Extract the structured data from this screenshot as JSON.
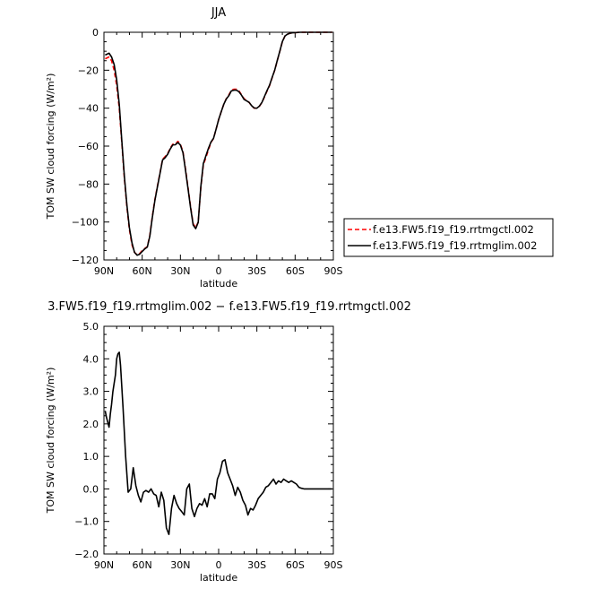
{
  "chart_data": [
    {
      "type": "line",
      "title": "JJA",
      "xlabel": "latitude",
      "ylabel": "TOM SW cloud forcing (W/m²)",
      "xlim": [
        90,
        -90
      ],
      "ylim": [
        -120,
        0
      ],
      "x_ticks": [
        90,
        60,
        30,
        0,
        -30,
        -60,
        -90
      ],
      "x_tick_labels": [
        "90N",
        "60N",
        "30N",
        "0",
        "30S",
        "60S",
        "90S"
      ],
      "y_ticks": [
        0,
        -20,
        -40,
        -60,
        -80,
        -100,
        -120
      ],
      "y_tick_labels": [
        "0",
        "−20",
        "−40",
        "−60",
        "−80",
        "−100",
        "−120"
      ],
      "legend": {
        "placement": "right of plot"
      },
      "series": [
        {
          "name": "f.e13.FW5.f19_f19.rrtmgctl.002",
          "color": "#ff0000",
          "dash": "dashed",
          "x": [
            89,
            86,
            84,
            82,
            80,
            78,
            76,
            74,
            72,
            70,
            68,
            66,
            64,
            62,
            60,
            58,
            56,
            54,
            52,
            50,
            48,
            46,
            44,
            42,
            40,
            38,
            36,
            34,
            32,
            30,
            28,
            26,
            24,
            22,
            20,
            18,
            16,
            14,
            12,
            10,
            8,
            6,
            4,
            2,
            0,
            -2,
            -4,
            -6,
            -8,
            -10,
            -12,
            -14,
            -16,
            -18,
            -20,
            -22,
            -24,
            -26,
            -28,
            -30,
            -32,
            -34,
            -36,
            -38,
            -40,
            -42,
            -44,
            -46,
            -48,
            -50,
            -52,
            -54,
            -56,
            -58,
            -60,
            -62,
            -64,
            -66,
            -68,
            -70,
            -75,
            -80,
            -85,
            -89
          ],
          "y": [
            -14,
            -13,
            -15,
            -20,
            -28,
            -40,
            -58,
            -77,
            -92,
            -104,
            -112,
            -116,
            -117.3,
            -116.7,
            -115,
            -114,
            -113,
            -107,
            -97,
            -88,
            -81,
            -74,
            -67,
            -65.5,
            -64,
            -61,
            -59,
            -59,
            -57.5,
            -59,
            -63,
            -72,
            -82,
            -92,
            -101,
            -103,
            -100,
            -82,
            -70,
            -66,
            -62,
            -58,
            -56,
            -51,
            -46,
            -42,
            -38,
            -35,
            -33,
            -30.5,
            -30,
            -30,
            -31,
            -33,
            -35,
            -36,
            -37,
            -39,
            -40,
            -40,
            -39,
            -37,
            -34,
            -31,
            -28,
            -24,
            -20,
            -15,
            -10,
            -5,
            -2,
            -1,
            -0.5,
            -0.3,
            -0.2,
            -0.1,
            0,
            0,
            0,
            0,
            0,
            0,
            0,
            0
          ]
        },
        {
          "name": "f.e13.FW5.f19_f19.rrtmglim.002",
          "color": "#000000",
          "dash": "solid",
          "x": [
            89,
            86,
            84,
            82,
            80,
            78,
            76,
            74,
            72,
            70,
            68,
            66,
            64,
            62,
            60,
            58,
            56,
            54,
            52,
            50,
            48,
            46,
            44,
            42,
            40,
            38,
            36,
            34,
            32,
            30,
            28,
            26,
            24,
            22,
            20,
            18,
            16,
            14,
            12,
            10,
            8,
            6,
            4,
            2,
            0,
            -2,
            -4,
            -6,
            -8,
            -10,
            -12,
            -14,
            -16,
            -18,
            -20,
            -22,
            -24,
            -26,
            -28,
            -30,
            -32,
            -34,
            -36,
            -38,
            -40,
            -42,
            -44,
            -46,
            -48,
            -50,
            -52,
            -54,
            -56,
            -58,
            -60,
            -62,
            -64,
            -66,
            -68,
            -70,
            -75,
            -80,
            -85,
            -89
          ],
          "y": [
            -12,
            -11,
            -13,
            -17,
            -25,
            -38,
            -57,
            -76,
            -91,
            -103,
            -111,
            -116,
            -117.5,
            -117,
            -115.5,
            -114.2,
            -113.2,
            -107.5,
            -97.6,
            -88.5,
            -81.4,
            -74.3,
            -67.3,
            -66.1,
            -64.3,
            -61.5,
            -59.4,
            -59.3,
            -58.1,
            -59.4,
            -63.5,
            -72.6,
            -82.7,
            -92.6,
            -101.6,
            -103.5,
            -100.2,
            -81.4,
            -69.2,
            -65.1,
            -61.2,
            -57.8,
            -55.9,
            -51,
            -46,
            -42,
            -38,
            -35.2,
            -33.4,
            -30.9,
            -30.5,
            -30.5,
            -31.4,
            -33.2,
            -35.4,
            -36.2,
            -37,
            -38.8,
            -39.9,
            -40,
            -38.9,
            -36.9,
            -33.8,
            -30.7,
            -27.8,
            -23.8,
            -19.9,
            -14.9,
            -9.9,
            -4.9,
            -2,
            -1,
            -0.5,
            -0.3,
            -0.2,
            -0.1,
            0,
            0,
            0,
            0,
            0,
            0,
            0,
            0
          ]
        }
      ]
    },
    {
      "type": "line",
      "title": "3.FW5.f19_f19.rrtmglim.002 − f.e13.FW5.f19_f19.rrtmgctl.002",
      "xlabel": "latitude",
      "ylabel": "TOM SW cloud forcing (W/m²)",
      "xlim": [
        90,
        -90
      ],
      "ylim": [
        -2.0,
        5.0
      ],
      "x_ticks": [
        90,
        60,
        30,
        0,
        -30,
        -60,
        -90
      ],
      "x_tick_labels": [
        "90N",
        "60N",
        "30N",
        "0",
        "30S",
        "60S",
        "90S"
      ],
      "y_ticks": [
        5.0,
        4.0,
        3.0,
        2.0,
        1.0,
        0.0,
        -1.0,
        -2.0
      ],
      "y_tick_labels": [
        "5.0",
        "4.0",
        "3.0",
        "2.0",
        "1.0",
        "0.0",
        "−1.0",
        "−2.0"
      ],
      "series": [
        {
          "color": "#000000",
          "dash": "solid",
          "x": [
            89,
            88,
            86,
            85,
            84,
            83,
            81,
            80,
            79,
            78,
            77,
            75,
            73,
            71,
            69,
            67,
            65,
            63,
            61,
            59,
            57,
            55,
            53,
            51,
            49,
            47,
            45,
            43,
            41,
            39,
            37,
            35,
            33,
            31,
            29,
            27,
            25,
            23,
            21,
            19,
            17,
            15,
            13,
            11,
            9,
            7,
            5,
            3,
            1,
            -1,
            -3,
            -5,
            -7,
            -9,
            -11,
            -13,
            -15,
            -17,
            -19,
            -21,
            -23,
            -25,
            -27,
            -29,
            -31,
            -33,
            -35,
            -37,
            -39,
            -41,
            -43,
            -45,
            -47,
            -49,
            -51,
            -53,
            -55,
            -57,
            -59,
            -61,
            -63,
            -65,
            -67,
            -70,
            -75,
            -80,
            -85,
            -89
          ],
          "y": [
            2.4,
            2.2,
            1.9,
            2.3,
            2.6,
            3.0,
            3.5,
            4.0,
            4.15,
            4.2,
            3.8,
            2.5,
            1.0,
            -0.1,
            0.0,
            0.65,
            0.1,
            -0.2,
            -0.4,
            -0.1,
            -0.05,
            -0.1,
            0.0,
            -0.15,
            -0.2,
            -0.55,
            -0.1,
            -0.35,
            -1.2,
            -1.4,
            -0.6,
            -0.2,
            -0.45,
            -0.6,
            -0.7,
            -0.8,
            0.0,
            0.15,
            -0.6,
            -0.85,
            -0.6,
            -0.45,
            -0.5,
            -0.3,
            -0.55,
            -0.15,
            -0.15,
            -0.3,
            0.3,
            0.5,
            0.85,
            0.9,
            0.5,
            0.3,
            0.1,
            -0.2,
            0.05,
            -0.1,
            -0.35,
            -0.5,
            -0.8,
            -0.6,
            -0.65,
            -0.5,
            -0.3,
            -0.2,
            -0.1,
            0.05,
            0.1,
            0.2,
            0.3,
            0.15,
            0.25,
            0.2,
            0.3,
            0.25,
            0.2,
            0.25,
            0.2,
            0.15,
            0.05,
            0.02,
            0.0,
            0.0,
            0.0,
            0.0,
            0.0,
            0.0
          ]
        }
      ]
    }
  ]
}
